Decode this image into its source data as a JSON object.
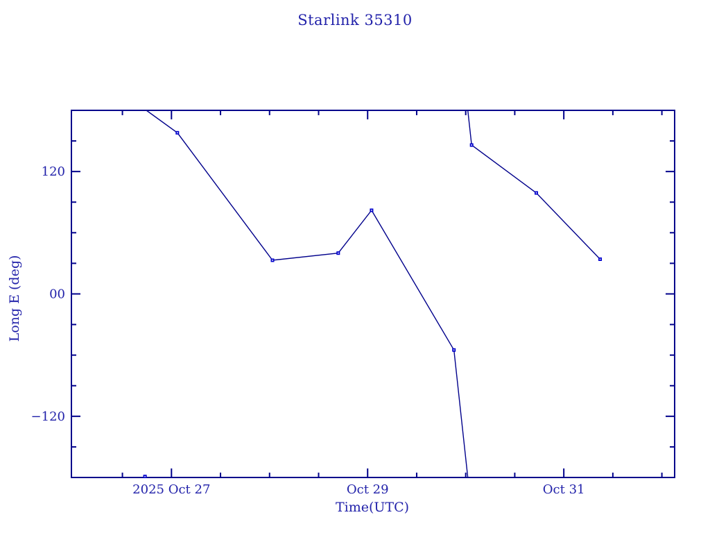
{
  "title": "Starlink 35310",
  "colors": {
    "background": "#ffffff",
    "axis": "#00008b",
    "line": "#00008b",
    "marker": "#0000cd",
    "marker_center": "#ffffff",
    "text": "#2222aa"
  },
  "chart_data": {
    "type": "line",
    "title": "Starlink 35310",
    "xlabel": "Time(UTC)",
    "ylabel": "Long E (deg)",
    "grid": false,
    "legend": "none",
    "marker": "filled-square-with-white-center",
    "wrap_at_degrees": 180,
    "x_axis": {
      "t_unit": "days since 2025-10-26 00:00 UTC",
      "range": [
        -0.02,
        6.13
      ],
      "major_ticks": [
        {
          "t": 1,
          "label": "2025 Oct 27"
        },
        {
          "t": 3,
          "label": "Oct 29"
        },
        {
          "t": 5,
          "label": "Oct 31"
        }
      ],
      "minor_tick_step": 0.5
    },
    "y_axis": {
      "range": [
        -180,
        180
      ],
      "major_ticks": [
        {
          "v": 120,
          "label": "120"
        },
        {
          "v": 0,
          "label": "00"
        },
        {
          "v": -120,
          "label": "−120"
        }
      ],
      "minor_tick_step": 30
    },
    "series": [
      {
        "name": "Starlink 35310 longitude",
        "points": [
          {
            "t": 0.73,
            "lon": -179
          },
          {
            "t": 1.06,
            "lon": 158
          },
          {
            "t": 2.03,
            "lon": 33
          },
          {
            "t": 2.7,
            "lon": 40
          },
          {
            "t": 3.04,
            "lon": 82
          },
          {
            "t": 3.88,
            "lon": -55
          },
          {
            "t": 4.06,
            "lon": 146
          },
          {
            "t": 4.72,
            "lon": 99
          },
          {
            "t": 5.37,
            "lon": 34
          }
        ]
      }
    ]
  }
}
